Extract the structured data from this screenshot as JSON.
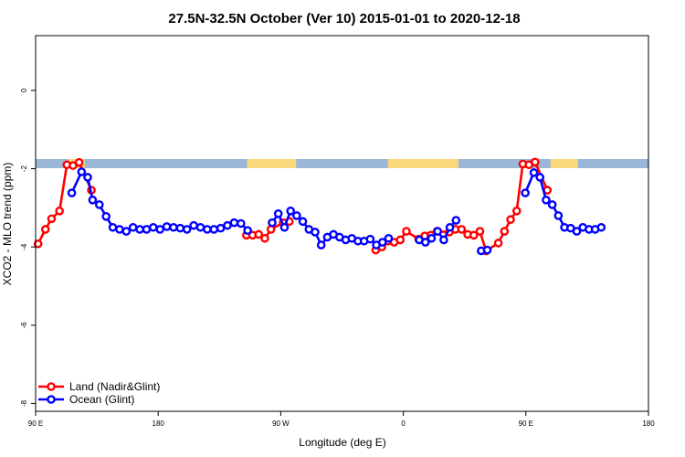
{
  "chart_data": {
    "type": "line",
    "title": "27.5N-32.5N October (Ver 10)   2015-01-01 to 2020-12-18",
    "xlabel": "Longitude (deg E)",
    "ylabel": "XCO2 - MLO trend (ppm)",
    "xlim": [
      0,
      100
    ],
    "ylim": [
      -8.2,
      1.4
    ],
    "x_ticks": [
      {
        "pos": 0,
        "label": "90 E"
      },
      {
        "pos": 20,
        "label": "180"
      },
      {
        "pos": 40,
        "label": "90 W"
      },
      {
        "pos": 60,
        "label": "0"
      },
      {
        "pos": 80,
        "label": "90 E"
      },
      {
        "pos": 100,
        "label": "180"
      }
    ],
    "y_ticks": [
      0,
      -2,
      -4,
      -6,
      -8
    ],
    "grid": false,
    "legend_position": "bottom-left",
    "land_ocean_band": {
      "y_center": -1.87,
      "ocean_color": "#9bb7d8",
      "land_color": "#f9d77c",
      "land_segments": [
        [
          5.3,
          8.0
        ],
        [
          34.5,
          42.5
        ],
        [
          57.5,
          69.0
        ],
        [
          84.0,
          88.5
        ]
      ]
    },
    "series": [
      {
        "name": "Land (Nadir&Glint)",
        "color": "#ff0000",
        "segments": [
          [
            [
              0.4,
              -3.92
            ],
            [
              1.6,
              -3.55
            ],
            [
              2.6,
              -3.28
            ],
            [
              3.9,
              -3.08
            ],
            [
              5.1,
              -1.9
            ],
            [
              6.1,
              -1.92
            ],
            [
              7.1,
              -1.84
            ],
            [
              9.1,
              -2.55
            ]
          ],
          [
            [
              34.4,
              -3.7
            ],
            [
              35.4,
              -3.7
            ],
            [
              36.4,
              -3.68
            ],
            [
              37.4,
              -3.78
            ],
            [
              38.4,
              -3.55
            ],
            [
              40.4,
              -3.38
            ],
            [
              41.4,
              -3.35
            ]
          ],
          [
            [
              55.5,
              -4.08
            ],
            [
              56.5,
              -4.0
            ],
            [
              57.5,
              -3.85
            ],
            [
              58.5,
              -3.88
            ],
            [
              59.5,
              -3.82
            ],
            [
              60.5,
              -3.6
            ],
            [
              62.5,
              -3.8
            ],
            [
              63.5,
              -3.72
            ],
            [
              64.5,
              -3.7
            ],
            [
              65.5,
              -3.6
            ],
            [
              67.5,
              -3.62
            ],
            [
              68.5,
              -3.55
            ],
            [
              69.5,
              -3.55
            ],
            [
              70.5,
              -3.68
            ],
            [
              71.5,
              -3.7
            ],
            [
              72.5,
              -3.6
            ],
            [
              73.5,
              -4.1
            ],
            [
              75.5,
              -3.9
            ],
            [
              76.5,
              -3.6
            ],
            [
              77.5,
              -3.3
            ],
            [
              78.5,
              -3.08
            ],
            [
              79.5,
              -1.88
            ],
            [
              80.5,
              -1.9
            ],
            [
              81.5,
              -1.83
            ],
            [
              83.5,
              -2.55
            ]
          ]
        ]
      },
      {
        "name": "Ocean (Glint)",
        "color": "#0000ff",
        "segments": [
          [
            [
              5.9,
              -2.62
            ],
            [
              7.5,
              -2.08
            ],
            [
              8.5,
              -2.22
            ],
            [
              9.3,
              -2.8
            ],
            [
              10.4,
              -2.92
            ],
            [
              11.5,
              -3.22
            ],
            [
              12.6,
              -3.5
            ],
            [
              13.7,
              -3.55
            ],
            [
              14.8,
              -3.6
            ],
            [
              15.9,
              -3.5
            ],
            [
              17.0,
              -3.55
            ],
            [
              18.1,
              -3.55
            ],
            [
              19.2,
              -3.5
            ],
            [
              20.3,
              -3.55
            ],
            [
              21.4,
              -3.48
            ],
            [
              22.5,
              -3.5
            ],
            [
              23.6,
              -3.52
            ],
            [
              24.7,
              -3.55
            ],
            [
              25.8,
              -3.45
            ],
            [
              26.9,
              -3.5
            ],
            [
              28.0,
              -3.55
            ],
            [
              29.1,
              -3.55
            ],
            [
              30.2,
              -3.52
            ],
            [
              31.3,
              -3.45
            ],
            [
              32.4,
              -3.38
            ],
            [
              33.5,
              -3.4
            ],
            [
              34.6,
              -3.58
            ]
          ],
          [
            [
              38.6,
              -3.38
            ],
            [
              39.6,
              -3.15
            ],
            [
              40.6,
              -3.5
            ],
            [
              41.6,
              -3.08
            ],
            [
              42.6,
              -3.2
            ],
            [
              43.6,
              -3.35
            ],
            [
              44.6,
              -3.55
            ],
            [
              45.6,
              -3.62
            ],
            [
              46.6,
              -3.95
            ],
            [
              47.6,
              -3.75
            ],
            [
              48.6,
              -3.68
            ],
            [
              49.6,
              -3.75
            ],
            [
              50.6,
              -3.82
            ],
            [
              51.6,
              -3.78
            ],
            [
              52.6,
              -3.85
            ],
            [
              53.6,
              -3.85
            ],
            [
              54.6,
              -3.8
            ],
            [
              55.6,
              -3.95
            ],
            [
              56.6,
              -3.88
            ],
            [
              57.6,
              -3.78
            ]
          ],
          [
            [
              62.6,
              -3.82
            ],
            [
              63.6,
              -3.88
            ],
            [
              64.6,
              -3.78
            ],
            [
              65.6,
              -3.6
            ],
            [
              66.6,
              -3.82
            ],
            [
              67.6,
              -3.5
            ],
            [
              68.6,
              -3.32
            ]
          ],
          [
            [
              79.9,
              -2.62
            ],
            [
              81.3,
              -2.1
            ],
            [
              82.3,
              -2.22
            ],
            [
              83.3,
              -2.8
            ],
            [
              84.3,
              -2.92
            ],
            [
              85.3,
              -3.2
            ],
            [
              86.3,
              -3.5
            ],
            [
              87.3,
              -3.52
            ],
            [
              88.3,
              -3.6
            ],
            [
              89.3,
              -3.5
            ],
            [
              90.3,
              -3.55
            ],
            [
              91.3,
              -3.55
            ],
            [
              92.3,
              -3.5
            ]
          ],
          [
            [
              72.7,
              -4.1
            ],
            [
              73.7,
              -4.08
            ]
          ]
        ]
      }
    ]
  }
}
